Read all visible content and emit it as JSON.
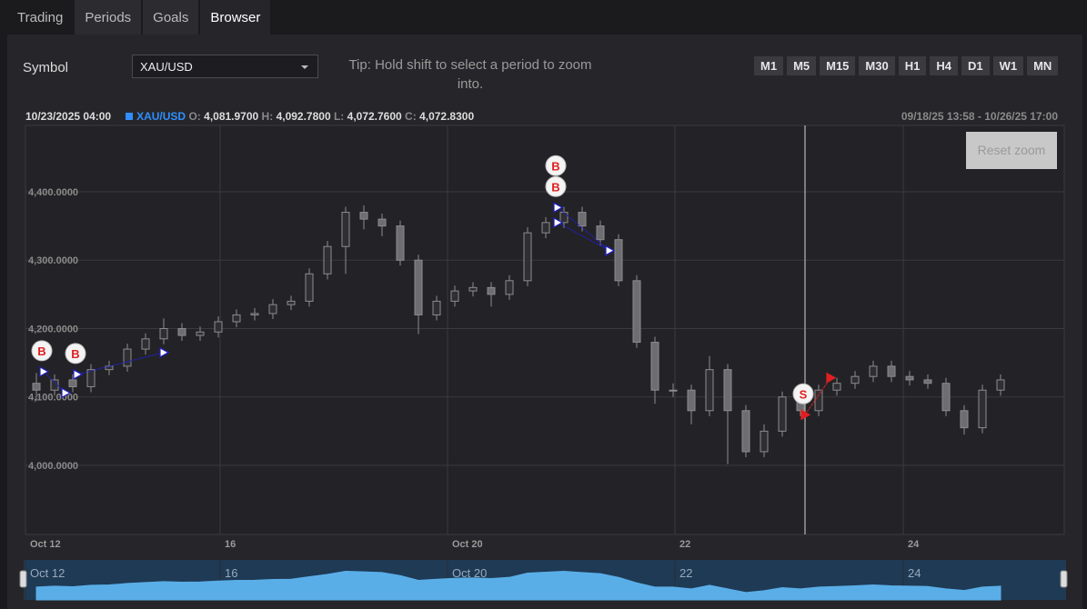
{
  "tabs": [
    "Trading",
    "Periods",
    "Goals",
    "Browser"
  ],
  "active_tab": 3,
  "symbol_label": "Symbol",
  "symbol_value": "XAU/USD",
  "tip": "Tip: Hold shift to select a period to zoom into.",
  "timeframes": [
    "M1",
    "M5",
    "M15",
    "M30",
    "H1",
    "H4",
    "D1",
    "W1",
    "MN"
  ],
  "info": {
    "date": "10/23/2025 04:00",
    "symbol": "XAU/USD",
    "fields": [
      {
        "label": "O:",
        "value": "4,081.9700"
      },
      {
        "label": "H:",
        "value": "4,092.7800"
      },
      {
        "label": "L:",
        "value": "4,072.7600"
      },
      {
        "label": "C:",
        "value": "4,072.8300"
      }
    ]
  },
  "range_label": "09/18/25 13:58 - 10/26/25 17:00",
  "reset_zoom": "Reset zoom",
  "chart_data": {
    "type": "candlestick",
    "grid": true,
    "color": "#8c8c8c",
    "navigator_color": "#5aaee8",
    "ylim": [
      3899,
      4497
    ],
    "yticks": [
      {
        "value": 4000,
        "label": "4,000.0000"
      },
      {
        "value": 4100,
        "label": "4,100.0000"
      },
      {
        "value": 4200,
        "label": "4,200.0000"
      },
      {
        "value": 4300,
        "label": "4,300.0000"
      },
      {
        "value": 4400,
        "label": "4,400.0000"
      }
    ],
    "xlim": [
      -0.6,
      56.5
    ],
    "xticks": [
      {
        "value": -0.6,
        "label": "Oct 12"
      },
      {
        "value": 10.1,
        "label": "16"
      },
      {
        "value": 22.6,
        "label": "Oct 20"
      },
      {
        "value": 35.1,
        "label": "22"
      },
      {
        "value": 47.65,
        "label": "24"
      }
    ],
    "open": [
      4120,
      4110,
      4125,
      4115,
      4140,
      4145,
      4170,
      4185,
      4200,
      4190,
      4195,
      4210,
      4220,
      4222,
      4235,
      4240,
      4280,
      4320,
      4370,
      4360,
      4350,
      4300,
      4220,
      4240,
      4255,
      4260,
      4250,
      4270,
      4340,
      4355,
      4370,
      4350,
      4330,
      4270,
      4180,
      4110,
      4110,
      4080,
      4140,
      4080,
      4020,
      4050,
      4100,
      4080,
      4110,
      4120,
      4130,
      4145,
      4130,
      4125,
      4120,
      4080,
      4055,
      4110
    ],
    "high": [
      4135,
      4133,
      4133,
      4148,
      4153,
      4178,
      4193,
      4215,
      4208,
      4203,
      4218,
      4228,
      4230,
      4243,
      4248,
      4288,
      4328,
      4378,
      4380,
      4368,
      4358,
      4308,
      4248,
      4263,
      4268,
      4268,
      4278,
      4348,
      4363,
      4378,
      4378,
      4358,
      4338,
      4278,
      4188,
      4120,
      4118,
      4160,
      4148,
      4088,
      4060,
      4108,
      4108,
      4118,
      4128,
      4138,
      4153,
      4153,
      4138,
      4133,
      4128,
      4088,
      4118,
      4133
    ],
    "low": [
      4095,
      4102,
      4107,
      4107,
      4132,
      4137,
      4162,
      4177,
      4182,
      4182,
      4187,
      4202,
      4212,
      4214,
      4227,
      4232,
      4272,
      4280,
      4345,
      4335,
      4292,
      4192,
      4212,
      4232,
      4247,
      4232,
      4242,
      4262,
      4332,
      4347,
      4342,
      4322,
      4262,
      4172,
      4090,
      4100,
      4060,
      4072,
      4002,
      4012,
      4012,
      4042,
      4072,
      4072,
      4102,
      4112,
      4122,
      4122,
      4117,
      4112,
      4072,
      4045,
      4047,
      4102
    ],
    "close": [
      4110,
      4125,
      4115,
      4140,
      4145,
      4170,
      4185,
      4200,
      4190,
      4195,
      4210,
      4220,
      4222,
      4235,
      4240,
      4280,
      4320,
      4370,
      4360,
      4350,
      4300,
      4220,
      4240,
      4255,
      4260,
      4250,
      4270,
      4340,
      4355,
      4370,
      4350,
      4330,
      4270,
      4180,
      4110,
      4110,
      4080,
      4140,
      4080,
      4020,
      4050,
      4100,
      4080,
      4110,
      4120,
      4130,
      4145,
      4130,
      4125,
      4120,
      4080,
      4055,
      4110,
      4125
    ],
    "trades": [
      {
        "label": "B",
        "color": "#2020c8",
        "entry_index": 0.4,
        "entry_price": 4137,
        "exit_index": 1.6,
        "exit_price": 4106
      },
      {
        "label": "B",
        "color": "#2020c8",
        "entry_index": 2.25,
        "entry_price": 4133,
        "exit_index": 7.0,
        "exit_price": 4165
      },
      {
        "label": "B",
        "color": "#2020c8",
        "entry_index": 28.65,
        "entry_price": 4377,
        "exit_index": 31.5,
        "exit_price": 4314
      },
      {
        "label": "B",
        "color": "#2020c8",
        "entry_index": 28.65,
        "entry_price": 4355,
        "exit_index": 31.5,
        "exit_price": 4314
      },
      {
        "label": "S",
        "color": "#e02020",
        "entry_index": 42.25,
        "entry_price": 4074,
        "exit_index": 43.65,
        "exit_price": 4128
      }
    ]
  }
}
